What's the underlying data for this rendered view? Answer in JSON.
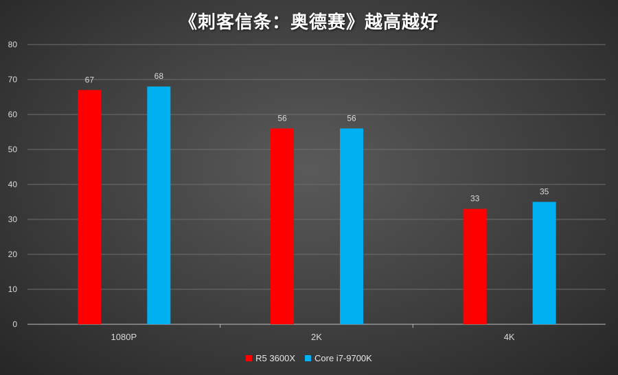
{
  "chart_data": {
    "type": "bar",
    "title": "《刺客信条：奥德赛》越高越好",
    "categories": [
      "1080P",
      "2K",
      "4K"
    ],
    "series": [
      {
        "name": "R5 3600X",
        "values": [
          67,
          56,
          33
        ],
        "color": "#ff0000"
      },
      {
        "name": "Core i7-9700K",
        "values": [
          68,
          56,
          35
        ],
        "color": "#00b0f0"
      }
    ],
    "ylim": [
      0,
      80
    ],
    "yticks": [
      0,
      10,
      20,
      30,
      40,
      50,
      60,
      70,
      80
    ],
    "grid": true,
    "legend_position": "bottom",
    "data_labels": true
  },
  "colors": {
    "grid": "#6e6e6e",
    "axis": "#bfbfbf",
    "text": "#d9d9d9"
  }
}
